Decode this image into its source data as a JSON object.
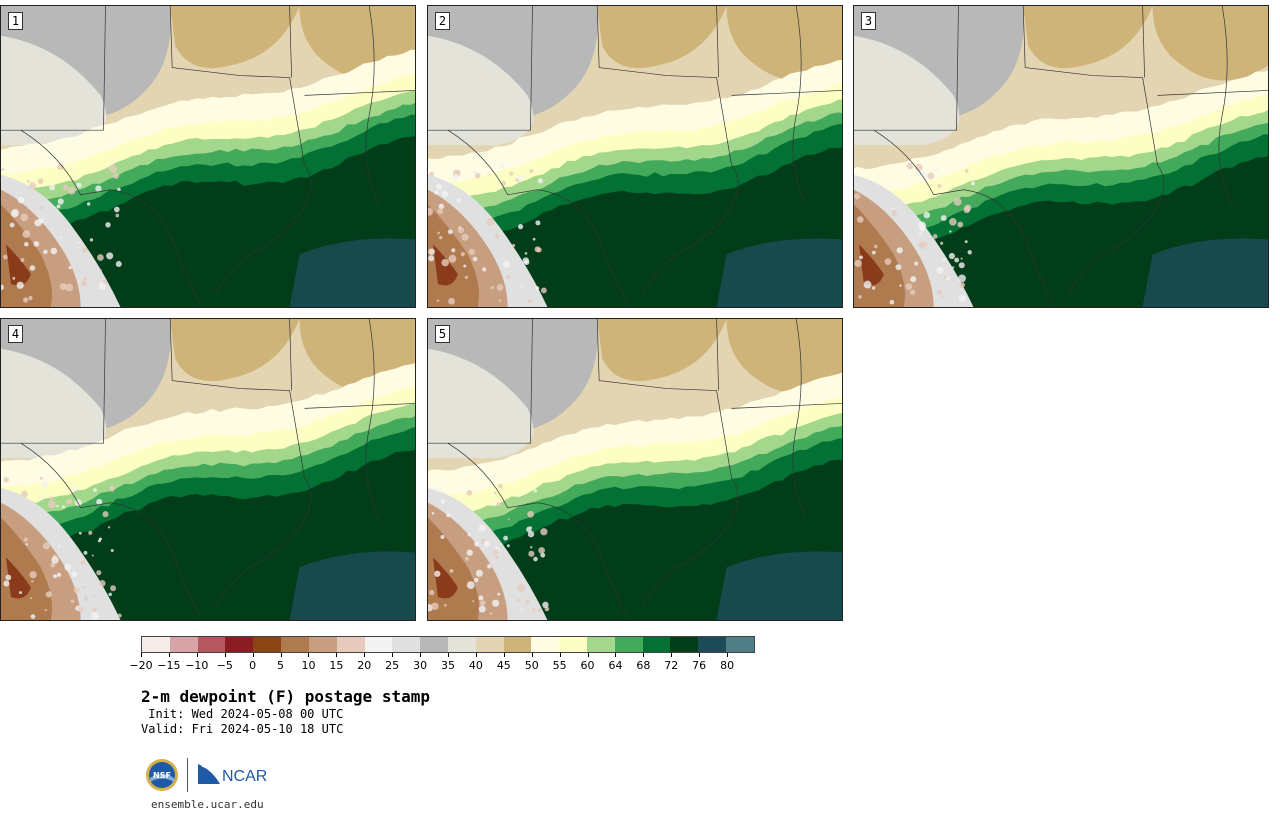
{
  "panels": [
    {
      "label": "1",
      "seed": 11
    },
    {
      "label": "2",
      "seed": 23
    },
    {
      "label": "3",
      "seed": 37
    },
    {
      "label": "4",
      "seed": 41
    },
    {
      "label": "5",
      "seed": 57
    }
  ],
  "colorbar": {
    "colors": [
      "#f6ecea",
      "#d7a3a6",
      "#b4575f",
      "#8a1c24",
      "#8b4513",
      "#b07a4f",
      "#c89e80",
      "#e6cbbd",
      "#f3f3f3",
      "#e0e0e0",
      "#b8b8b8",
      "#e3e3da",
      "#e3d5b1",
      "#cfb47a",
      "#fffce4",
      "#fdfec4",
      "#a3d88c",
      "#43a95b",
      "#047134",
      "#023d1a",
      "#1c4c57",
      "#4f7f85"
    ],
    "tick_labels": [
      "−20",
      "−15",
      "−10",
      "−5",
      "0",
      "5",
      "10",
      "15",
      "20",
      "25",
      "30",
      "35",
      "40",
      "45",
      "50",
      "55",
      "60",
      "64",
      "68",
      "72",
      "76",
      "80"
    ]
  },
  "title": "2-m dewpoint (F) postage stamp",
  "init_line": " Init: Wed 2024-05-08 00 UTC",
  "valid_line": "Valid: Fri 2024-05-10 18 UTC",
  "url": "ensemble.ucar.edu",
  "logos": {
    "nsf_text": "NSF",
    "ncar_text": "NCAR"
  }
}
